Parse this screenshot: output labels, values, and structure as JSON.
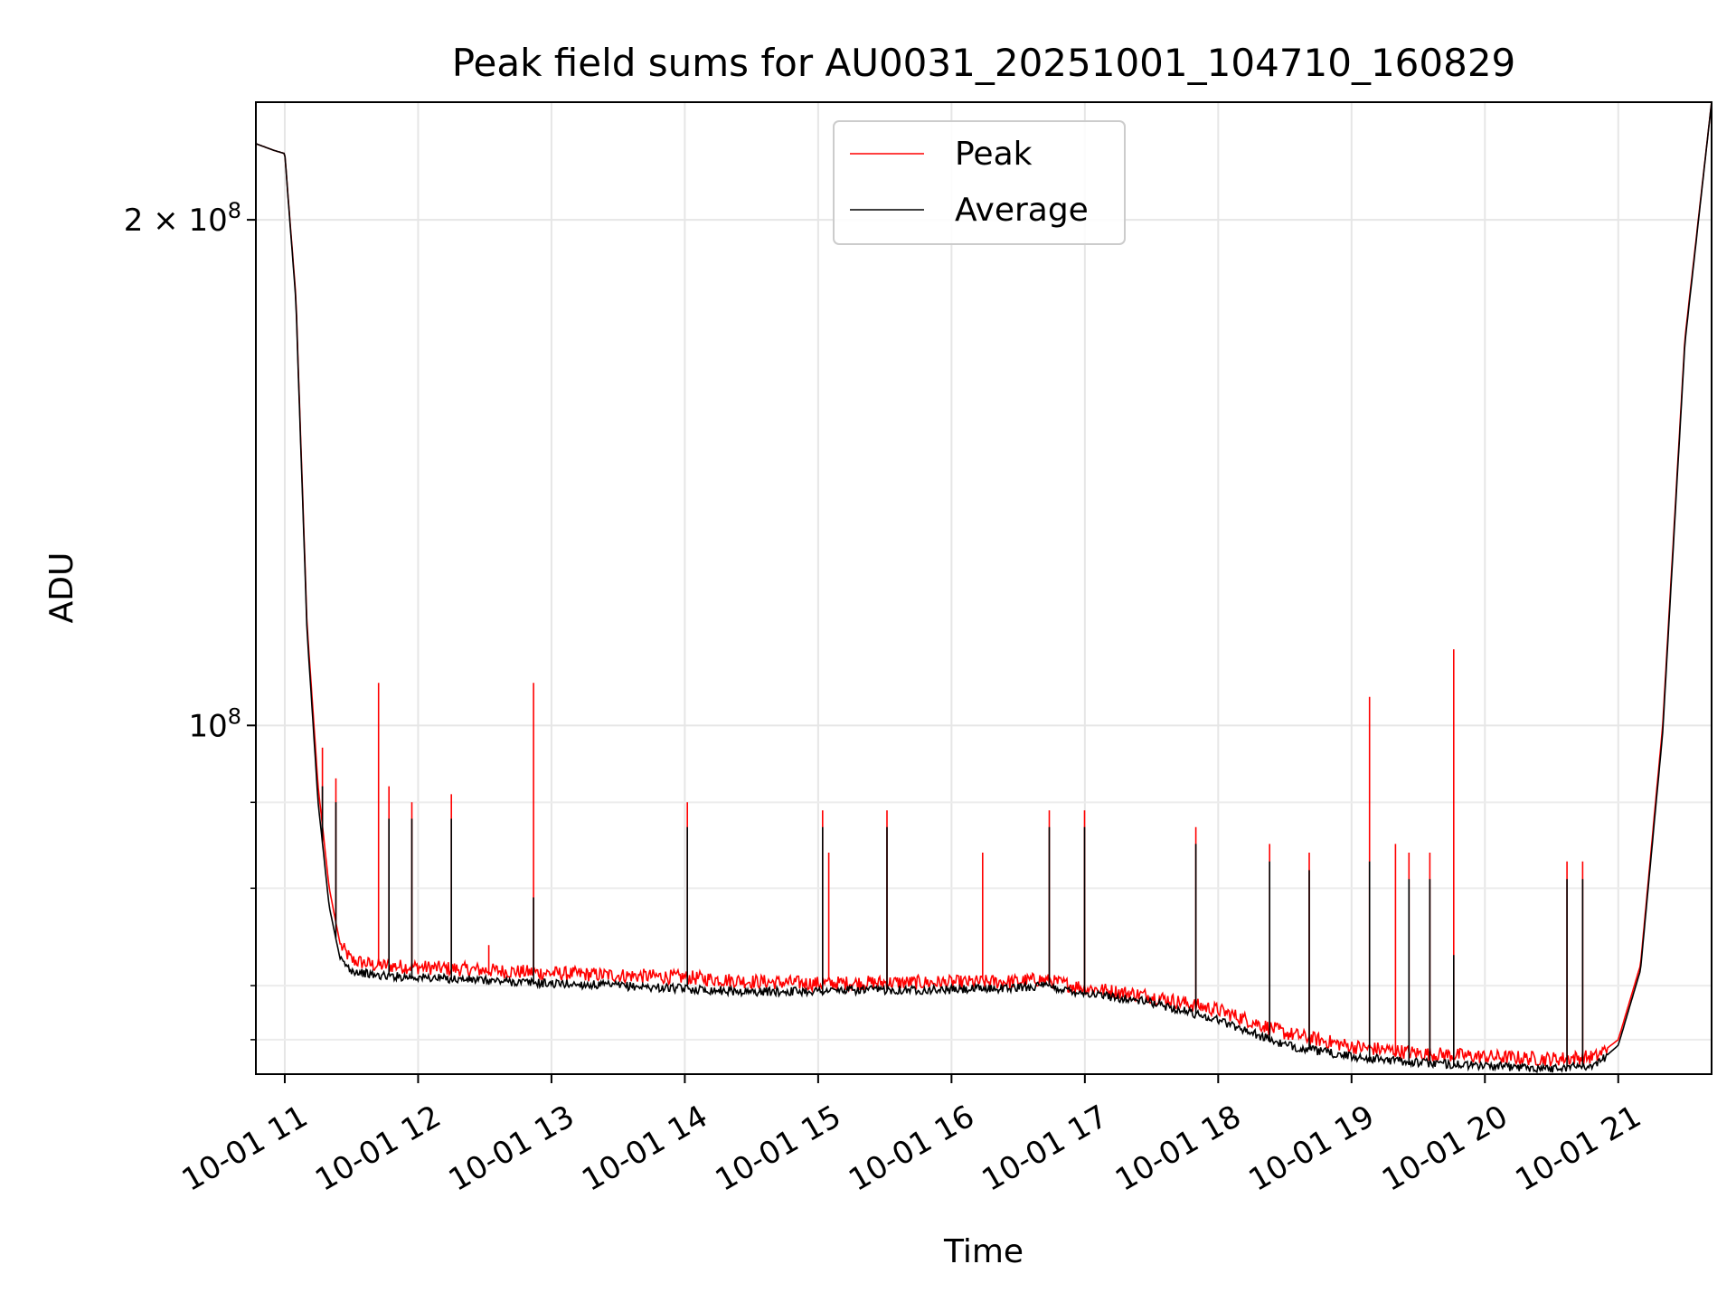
{
  "chart_data": {
    "type": "line",
    "title": "Peak field sums for AU0031_20251001_104710_160829",
    "xlabel": "Time",
    "ylabel": "ADU",
    "y_scale": "log",
    "xlim": [
      "2025-10-01 10:47",
      "2025-10-01 21:42"
    ],
    "ylim": [
      62000000,
      235000000
    ],
    "grid": true,
    "legend_position": "top-center",
    "x_ticks": [
      "10-01 11",
      "10-01 12",
      "10-01 13",
      "10-01 14",
      "10-01 15",
      "10-01 16",
      "10-01 17",
      "10-01 18",
      "10-01 19",
      "10-01 20",
      "10-01 21"
    ],
    "x_tick_times": [
      "2025-10-01 11:00",
      "2025-10-01 12:00",
      "2025-10-01 13:00",
      "2025-10-01 14:00",
      "2025-10-01 15:00",
      "2025-10-01 16:00",
      "2025-10-01 17:00",
      "2025-10-01 18:00",
      "2025-10-01 19:00",
      "2025-10-01 20:00",
      "2025-10-01 21:00"
    ],
    "y_major_ticks": [
      {
        "value": 100000000,
        "label_base": "10",
        "label_exp": "8"
      },
      {
        "value": 200000000,
        "label_base": "2 × 10",
        "label_exp": "8"
      }
    ],
    "y_minor_ticks": [
      65000000,
      70000000,
      80000000,
      90000000
    ],
    "series": [
      {
        "name": "Peak",
        "color": "#ff0000",
        "x": [
          "2025-10-01 10:47",
          "2025-10-01 10:55",
          "2025-10-01 11:00",
          "2025-10-01 11:05",
          "2025-10-01 11:10",
          "2025-10-01 11:15",
          "2025-10-01 11:20",
          "2025-10-01 11:25",
          "2025-10-01 11:30",
          "2025-10-01 11:40",
          "2025-10-01 12:00",
          "2025-10-01 12:30",
          "2025-10-01 13:00",
          "2025-10-01 13:30",
          "2025-10-01 14:00",
          "2025-10-01 14:30",
          "2025-10-01 15:00",
          "2025-10-01 15:30",
          "2025-10-01 16:00",
          "2025-10-01 16:30",
          "2025-10-01 16:40",
          "2025-10-01 17:00",
          "2025-10-01 17:30",
          "2025-10-01 18:00",
          "2025-10-01 18:30",
          "2025-10-01 19:00",
          "2025-10-01 19:30",
          "2025-10-01 20:00",
          "2025-10-01 20:30",
          "2025-10-01 20:50",
          "2025-10-01 21:00",
          "2025-10-01 21:10",
          "2025-10-01 21:20",
          "2025-10-01 21:30",
          "2025-10-01 21:42"
        ],
        "y": [
          222000000,
          220000000,
          219000000,
          180000000,
          115000000,
          92000000,
          80000000,
          74000000,
          72500000,
          72000000,
          71800000,
          71500000,
          71200000,
          71000000,
          70800000,
          70400000,
          70200000,
          70300000,
          70300000,
          70400000,
          70600000,
          69800000,
          69000000,
          67700000,
          65600000,
          64400000,
          63800000,
          63500000,
          63300000,
          63500000,
          65000000,
          72000000,
          100000000,
          170000000,
          235000000
        ],
        "spikes": [
          {
            "x": "2025-10-01 11:17",
            "y": 97000000
          },
          {
            "x": "2025-10-01 11:23",
            "y": 93000000
          },
          {
            "x": "2025-10-01 11:42",
            "y": 106000000
          },
          {
            "x": "2025-10-01 11:47",
            "y": 92000000
          },
          {
            "x": "2025-10-01 11:57",
            "y": 90000000
          },
          {
            "x": "2025-10-01 12:15",
            "y": 91000000
          },
          {
            "x": "2025-10-01 12:32",
            "y": 74000000
          },
          {
            "x": "2025-10-01 12:52",
            "y": 106000000
          },
          {
            "x": "2025-10-01 14:01",
            "y": 90000000
          },
          {
            "x": "2025-10-01 15:02",
            "y": 89000000
          },
          {
            "x": "2025-10-01 15:05",
            "y": 84000000
          },
          {
            "x": "2025-10-01 15:31",
            "y": 89000000
          },
          {
            "x": "2025-10-01 16:14",
            "y": 84000000
          },
          {
            "x": "2025-10-01 16:44",
            "y": 89000000
          },
          {
            "x": "2025-10-01 17:00",
            "y": 89000000
          },
          {
            "x": "2025-10-01 17:50",
            "y": 87000000
          },
          {
            "x": "2025-10-01 18:23",
            "y": 85000000
          },
          {
            "x": "2025-10-01 18:41",
            "y": 84000000
          },
          {
            "x": "2025-10-01 19:08",
            "y": 104000000
          },
          {
            "x": "2025-10-01 19:20",
            "y": 85000000
          },
          {
            "x": "2025-10-01 19:26",
            "y": 84000000
          },
          {
            "x": "2025-10-01 19:35",
            "y": 84000000
          },
          {
            "x": "2025-10-01 19:46",
            "y": 111000000
          },
          {
            "x": "2025-10-01 20:37",
            "y": 83000000
          },
          {
            "x": "2025-10-01 20:44",
            "y": 83000000
          }
        ]
      },
      {
        "name": "Average",
        "color": "#000000",
        "x": [
          "2025-10-01 10:47",
          "2025-10-01 10:55",
          "2025-10-01 11:00",
          "2025-10-01 11:05",
          "2025-10-01 11:10",
          "2025-10-01 11:15",
          "2025-10-01 11:20",
          "2025-10-01 11:25",
          "2025-10-01 11:30",
          "2025-10-01 11:40",
          "2025-10-01 12:00",
          "2025-10-01 12:30",
          "2025-10-01 13:00",
          "2025-10-01 13:30",
          "2025-10-01 14:00",
          "2025-10-01 14:30",
          "2025-10-01 15:00",
          "2025-10-01 15:30",
          "2025-10-01 16:00",
          "2025-10-01 16:30",
          "2025-10-01 16:40",
          "2025-10-01 17:00",
          "2025-10-01 17:30",
          "2025-10-01 18:00",
          "2025-10-01 18:30",
          "2025-10-01 19:00",
          "2025-10-01 19:30",
          "2025-10-01 20:00",
          "2025-10-01 20:30",
          "2025-10-01 20:50",
          "2025-10-01 21:00",
          "2025-10-01 21:10",
          "2025-10-01 21:20",
          "2025-10-01 21:30",
          "2025-10-01 21:42"
        ],
        "y": [
          222000000,
          220000000,
          219000000,
          179000000,
          114000000,
          90000000,
          78000000,
          72500000,
          71500000,
          71000000,
          70800000,
          70500000,
          70200000,
          70000000,
          69700000,
          69400000,
          69500000,
          69600000,
          69600000,
          69800000,
          70000000,
          69300000,
          68400000,
          66800000,
          64500000,
          63500000,
          63000000,
          62700000,
          62500000,
          62800000,
          64500000,
          71500000,
          99000000,
          169000000,
          235000000
        ],
        "spikes": [
          {
            "x": "2025-10-01 11:17",
            "y": 92000000
          },
          {
            "x": "2025-10-01 11:23",
            "y": 90000000
          },
          {
            "x": "2025-10-01 11:47",
            "y": 88000000
          },
          {
            "x": "2025-10-01 11:57",
            "y": 88000000
          },
          {
            "x": "2025-10-01 12:15",
            "y": 88000000
          },
          {
            "x": "2025-10-01 12:52",
            "y": 79000000
          },
          {
            "x": "2025-10-01 14:01",
            "y": 87000000
          },
          {
            "x": "2025-10-01 15:02",
            "y": 87000000
          },
          {
            "x": "2025-10-01 15:31",
            "y": 87000000
          },
          {
            "x": "2025-10-01 16:44",
            "y": 87000000
          },
          {
            "x": "2025-10-01 17:00",
            "y": 87000000
          },
          {
            "x": "2025-10-01 17:50",
            "y": 85000000
          },
          {
            "x": "2025-10-01 18:23",
            "y": 83000000
          },
          {
            "x": "2025-10-01 18:41",
            "y": 82000000
          },
          {
            "x": "2025-10-01 19:08",
            "y": 83000000
          },
          {
            "x": "2025-10-01 19:26",
            "y": 81000000
          },
          {
            "x": "2025-10-01 19:35",
            "y": 81000000
          },
          {
            "x": "2025-10-01 19:46",
            "y": 73000000
          },
          {
            "x": "2025-10-01 20:37",
            "y": 81000000
          },
          {
            "x": "2025-10-01 20:44",
            "y": 81000000
          }
        ]
      }
    ]
  }
}
